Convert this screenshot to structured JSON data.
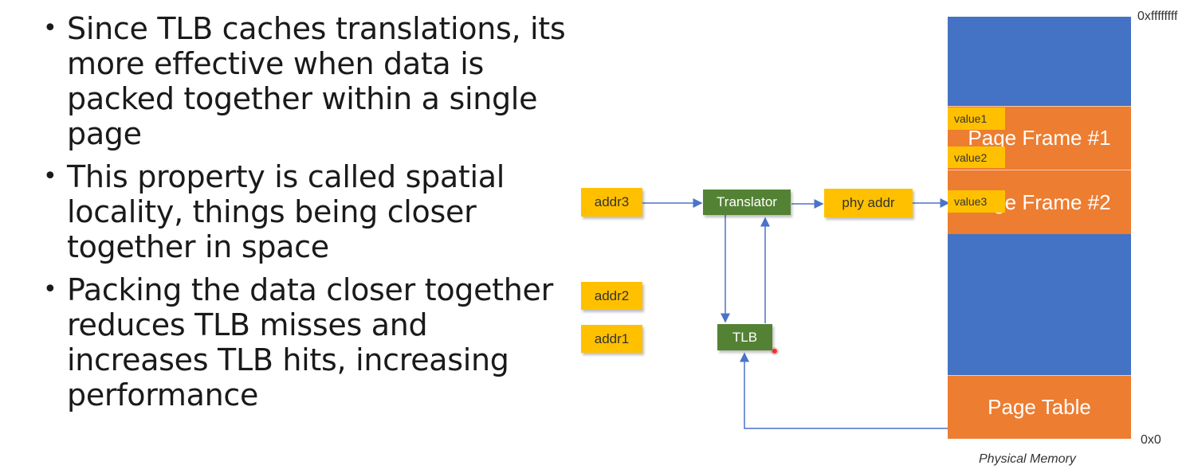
{
  "bullets": [
    "Since TLB caches translations, its more effective when data is packed together within a single page",
    "This property is called spatial locality, things being closer together in space",
    "Packing the data closer together reduces TLB misses and increases TLB hits, increasing performance"
  ],
  "diagram": {
    "addresses": [
      "addr3",
      "addr2",
      "addr1"
    ],
    "translator": "Translator",
    "phy_addr": "phy addr",
    "tlb": "TLB",
    "memory": {
      "top_address": "0xffffffff",
      "bottom_address": "0x0",
      "caption": "Physical Memory",
      "page_frame_1": "Page Frame #1",
      "page_frame_2": "Page Frame #2",
      "page_table": "Page Table",
      "values": [
        "value1",
        "value2",
        "value3"
      ]
    }
  },
  "colors": {
    "memory_blue": "#4472c4",
    "frame_orange": "#ed7d31",
    "addr_yellow": "#ffc000",
    "unit_green": "#548235",
    "arrow": "#4a74c9"
  }
}
